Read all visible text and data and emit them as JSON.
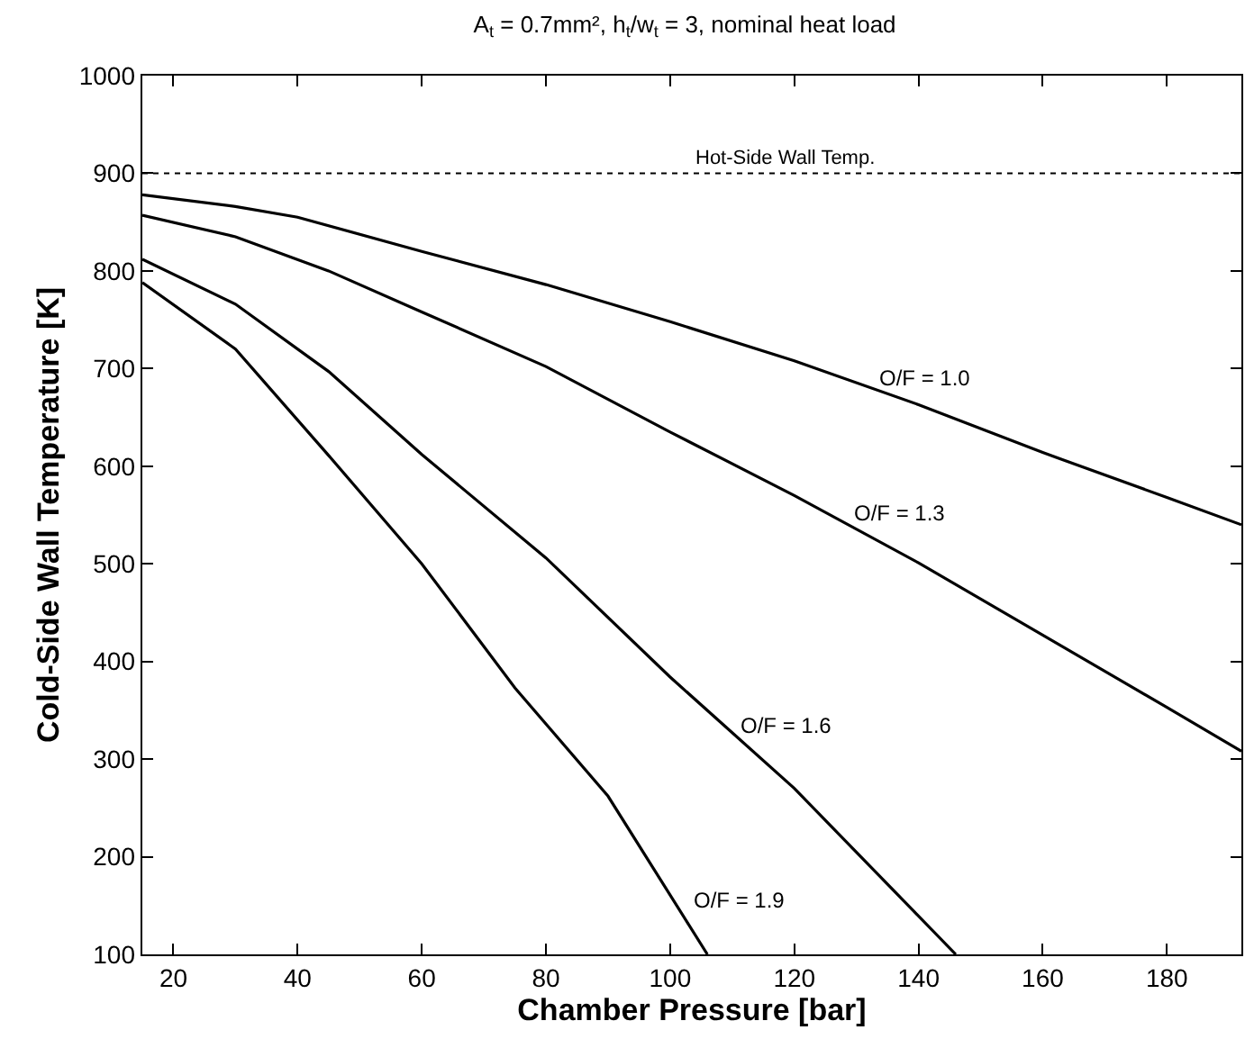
{
  "chart_data": {
    "type": "line",
    "title": "A$_{t}$ = 0.7mm², h$_{t}$/w$_{t}$ = 3, nominal heat load",
    "xlabel": "Chamber Pressure [bar]",
    "ylabel": "Cold-Side Wall Temperature [K]",
    "xlim": [
      15,
      192
    ],
    "xticks": [
      20,
      40,
      60,
      80,
      100,
      120,
      140,
      160,
      180
    ],
    "ylim": [
      100,
      1000
    ],
    "yticks": [
      100,
      200,
      300,
      400,
      500,
      600,
      700,
      800,
      900,
      1000
    ],
    "grid": false,
    "legend": false,
    "marker": "none",
    "line_style": "solid",
    "series": [
      {
        "name": "O/F = 1.0",
        "color": "#000000",
        "x": [
          15,
          30,
          40,
          60,
          80,
          100,
          120,
          140,
          160,
          180,
          192
        ],
        "values": [
          878,
          866,
          855,
          820,
          786,
          748,
          708,
          663,
          614,
          568,
          540
        ]
      },
      {
        "name": "O/F = 1.3",
        "color": "#000000",
        "x": [
          15,
          30,
          45,
          60,
          80,
          100,
          120,
          140,
          160,
          180,
          192
        ],
        "values": [
          857,
          835,
          800,
          758,
          702,
          635,
          570,
          501,
          427,
          353,
          308
        ]
      },
      {
        "name": "O/F = 1.6",
        "color": "#000000",
        "x": [
          15,
          30,
          45,
          60,
          80,
          100,
          120,
          146
        ],
        "values": [
          812,
          766,
          697,
          612,
          506,
          384,
          270,
          100
        ]
      },
      {
        "name": "O/F = 1.9",
        "color": "#000000",
        "x": [
          15,
          30,
          45,
          60,
          75,
          90,
          106
        ],
        "values": [
          788,
          720,
          611,
          500,
          373,
          262,
          100
        ]
      }
    ],
    "ref_lines": [
      {
        "axis": "y",
        "value": 900,
        "label": "Hot-Side Wall Temp.",
        "color": "#000000",
        "line_style": "dotted"
      }
    ]
  }
}
